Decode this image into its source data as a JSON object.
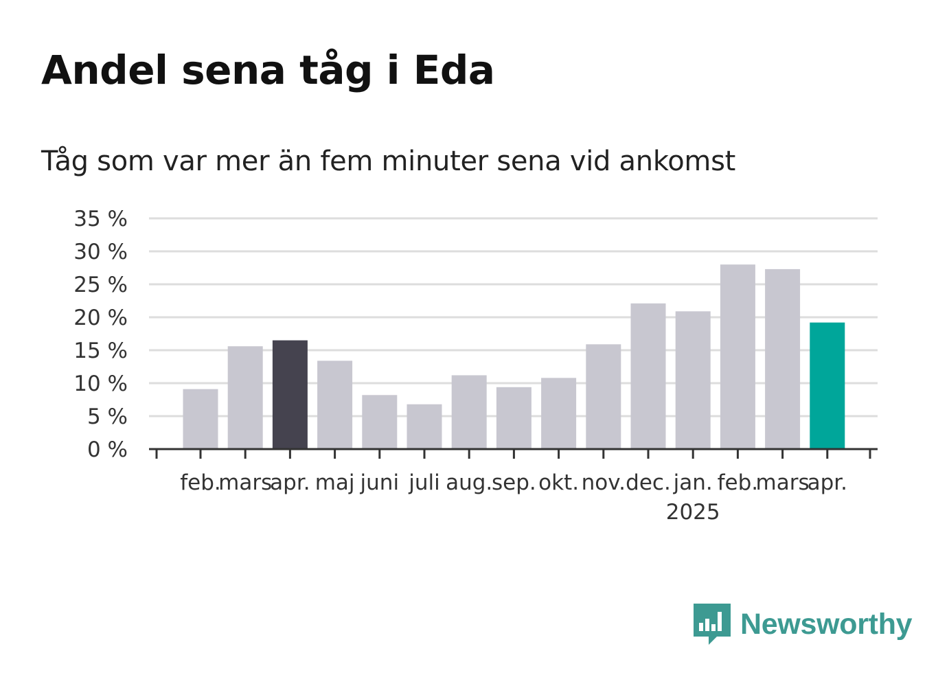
{
  "header": {
    "title": "Andel sena tåg i Eda",
    "subtitle": "Tåg som var mer än fem minuter sena vid ankomst"
  },
  "brand": {
    "name": "Newsworthy",
    "icon": "newsworthy-bar-chart-icon",
    "color": "#3d9a92"
  },
  "colors": {
    "bar_default": "#c8c7d0",
    "bar_highlight_dark": "#45434f",
    "bar_highlight_latest": "#00a69a",
    "grid": "#dddddd",
    "axis": "#333333"
  },
  "chart_data": {
    "type": "bar",
    "categories": [
      "feb.",
      "mars",
      "apr.",
      "maj",
      "juni",
      "juli",
      "aug.",
      "sep.",
      "okt.",
      "nov.",
      "dec.",
      "jan.",
      "feb.",
      "mars",
      "apr."
    ],
    "year_labels": [
      {
        "category_index": 11,
        "label": "2025"
      }
    ],
    "values": [
      9.1,
      15.6,
      16.5,
      13.4,
      8.2,
      6.8,
      11.2,
      9.4,
      10.8,
      15.9,
      22.1,
      20.9,
      28.0,
      27.3,
      19.2
    ],
    "highlight": [
      {
        "index": 2,
        "color": "#45434f"
      },
      {
        "index": 14,
        "color": "#00a69a"
      }
    ],
    "ylim": [
      0,
      35
    ],
    "yticks": [
      0,
      5,
      10,
      15,
      20,
      25,
      30,
      35
    ],
    "ytick_labels": [
      "0 %",
      "5 %",
      "10 %",
      "15 %",
      "20 %",
      "25 %",
      "30 %",
      "35 %"
    ],
    "grid": true,
    "xlabel": "",
    "ylabel": ""
  }
}
